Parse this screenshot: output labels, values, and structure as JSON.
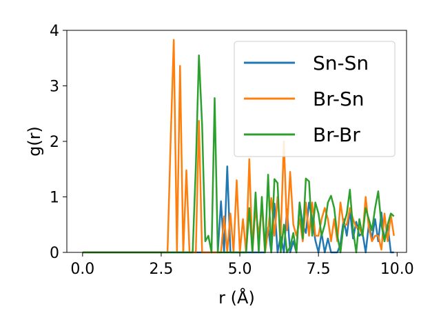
{
  "chart_data": {
    "type": "line",
    "xlabel": "r (Å)",
    "ylabel": "g(r)",
    "xlim": [
      -0.5,
      10.3
    ],
    "ylim": [
      0,
      4
    ],
    "xticks": [
      0.0,
      2.5,
      5.0,
      7.5,
      10.0
    ],
    "xtick_labels": [
      "0.0",
      "2.5",
      "5.0",
      "7.5",
      "10.0"
    ],
    "yticks": [
      0,
      1,
      2,
      3,
      4
    ],
    "ytick_labels": [
      "0",
      "1",
      "2",
      "3",
      "4"
    ],
    "legend_position": "top-right",
    "grid": false,
    "series": [
      {
        "name": "Sn-Sn",
        "color": "#1f77b4",
        "x": [
          0,
          2.5,
          4.3,
          4.4,
          4.5,
          4.6,
          4.7,
          4.8,
          5.8,
          5.9,
          6.0,
          6.1,
          6.2,
          6.3,
          6.4,
          6.5,
          6.6,
          6.7,
          6.8,
          6.9,
          7.0,
          7.1,
          7.2,
          7.3,
          7.4,
          7.5,
          7.6,
          7.7,
          7.8,
          7.9,
          8.0,
          8.1,
          8.2,
          8.3,
          8.4,
          8.5,
          8.6,
          8.7,
          8.8,
          8.9,
          9.0,
          9.1,
          9.2,
          9.3,
          9.4,
          9.5,
          9.6,
          9.7,
          9.8,
          9.9
        ],
        "y": [
          0,
          0,
          0,
          0.92,
          0,
          1.55,
          0,
          0,
          0,
          0.45,
          0,
          0.88,
          0,
          0.3,
          0,
          0.78,
          0,
          0.2,
          0,
          0.9,
          0.5,
          0.35,
          0.9,
          0.6,
          0.22,
          0,
          0.35,
          0,
          0.25,
          0,
          0,
          0,
          0.15,
          0.6,
          0.3,
          0.75,
          0.25,
          0.55,
          0.3,
          0.35,
          0,
          0.5,
          0.25,
          0.6,
          0.2,
          0.72,
          0.2,
          0.5,
          0,
          0
        ]
      },
      {
        "name": "Br-Sn",
        "color": "#ff7f0e",
        "x": [
          0,
          2.7,
          2.8,
          2.9,
          3.0,
          3.1,
          3.2,
          3.3,
          3.4,
          3.5,
          3.6,
          3.7,
          3.8,
          3.9,
          4.0,
          4.1,
          4.2,
          4.3,
          4.4,
          4.5,
          4.6,
          4.7,
          4.8,
          4.9,
          5.0,
          5.1,
          5.2,
          5.3,
          5.4,
          5.5,
          5.6,
          5.7,
          5.8,
          5.9,
          6.0,
          6.1,
          6.2,
          6.3,
          6.4,
          6.5,
          6.6,
          6.7,
          6.8,
          6.9,
          7.0,
          7.1,
          7.2,
          7.3,
          7.4,
          7.5,
          7.6,
          7.7,
          7.8,
          7.9,
          8.0,
          8.1,
          8.2,
          8.3,
          8.4,
          8.5,
          8.6,
          8.7,
          8.8,
          8.9,
          9.0,
          9.1,
          9.2,
          9.3,
          9.4,
          9.5,
          9.6,
          9.7,
          9.8,
          9.9
        ],
        "y": [
          0,
          0,
          2.0,
          3.83,
          0,
          3.36,
          0,
          1.48,
          0,
          0,
          0,
          2.37,
          0,
          0,
          0,
          0,
          0,
          0,
          0,
          0.65,
          0,
          0.7,
          0,
          1.3,
          0,
          0.6,
          0,
          1.68,
          0,
          0.8,
          0.3,
          0.85,
          0,
          0.4,
          0.98,
          0.3,
          1.0,
          0.3,
          2.0,
          0.4,
          1.45,
          0.5,
          0.3,
          0.6,
          0.2,
          0.9,
          0.3,
          0.9,
          0.3,
          0.3,
          0.6,
          0.8,
          0.6,
          0.2,
          0.6,
          0.2,
          0.9,
          0.5,
          0.5,
          0.8,
          0.6,
          0.45,
          0.45,
          0.3,
          1.0,
          0.45,
          0.2,
          0.3,
          0.3,
          0.05,
          0.7,
          0.2,
          0.67,
          0.3
        ]
      },
      {
        "name": "Br-Br",
        "color": "#2ca02c",
        "x": [
          0,
          3.5,
          3.6,
          3.7,
          3.8,
          3.9,
          4.0,
          4.1,
          4.2,
          4.3,
          4.4,
          4.5,
          4.6,
          4.7,
          4.8,
          4.9,
          5.0,
          5.1,
          5.2,
          5.3,
          5.4,
          5.5,
          5.6,
          5.7,
          5.8,
          5.9,
          6.0,
          6.1,
          6.2,
          6.3,
          6.4,
          6.5,
          6.6,
          6.7,
          6.8,
          6.9,
          7.0,
          7.1,
          7.2,
          7.3,
          7.4,
          7.5,
          7.6,
          7.7,
          7.8,
          7.9,
          8.0,
          8.1,
          8.2,
          8.3,
          8.4,
          8.5,
          8.6,
          8.7,
          8.8,
          8.9,
          9.0,
          9.1,
          9.2,
          9.3,
          9.4,
          9.5,
          9.6,
          9.7,
          9.8,
          9.9
        ],
        "y": [
          0,
          0,
          1.55,
          3.55,
          2.3,
          0.2,
          0.3,
          0,
          2.78,
          0,
          0,
          0,
          0,
          0,
          0,
          0,
          0,
          0,
          0,
          0.8,
          0,
          1.08,
          0,
          1.0,
          0,
          1.4,
          0,
          1.32,
          1.25,
          0,
          0.5,
          0,
          0.1,
          0.35,
          0,
          0.9,
          0.25,
          1.33,
          1.28,
          0.3,
          0.9,
          0.7,
          0.3,
          0.5,
          0.9,
          1.02,
          0.8,
          0.3,
          0,
          0.5,
          0.7,
          1.13,
          0.4,
          0,
          0.6,
          0.3,
          0.8,
          0.6,
          0.4,
          0.8,
          1.1,
          0.5,
          0.2,
          0.5,
          0.7,
          0.65
        ]
      }
    ]
  }
}
